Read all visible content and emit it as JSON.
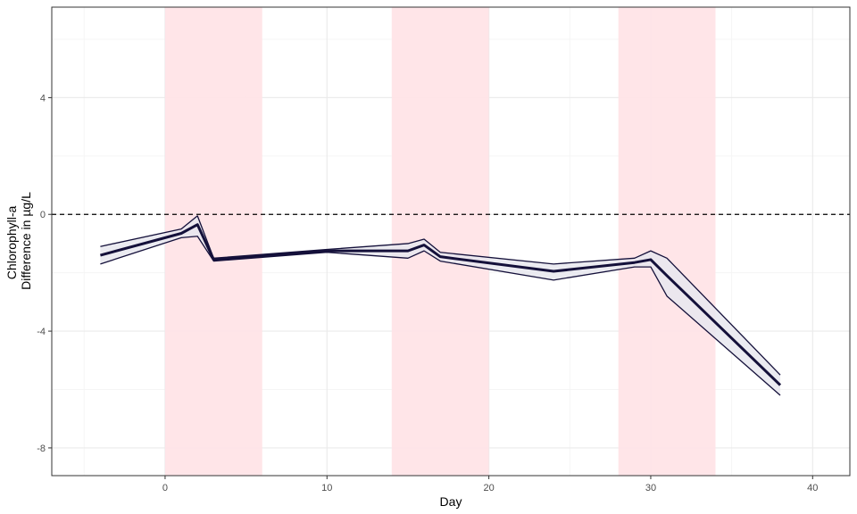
{
  "chart_data": {
    "type": "line",
    "title": "",
    "xlabel": "Day",
    "ylabel_lines": [
      "Chlorophyll-a",
      "Difference in µg/L"
    ],
    "xlim": [
      -7,
      42.3
    ],
    "ylim": [
      -8.95,
      7.1
    ],
    "x_ticks": [
      0,
      10,
      20,
      30,
      40
    ],
    "x_tick_labels": [
      "0",
      "10",
      "20",
      "30",
      "40"
    ],
    "y_ticks": [
      4,
      0,
      -4,
      -8
    ],
    "y_tick_labels": [
      "4",
      "0",
      "-4",
      "-8"
    ],
    "x_minor_ticks": [
      -5,
      5,
      15,
      25,
      35
    ],
    "y_minor_ticks": [
      6,
      2,
      -2,
      -6
    ],
    "grid": true,
    "reference_line": {
      "y": 0,
      "style": "dashed"
    },
    "shaded_periods": [
      {
        "x_start": 0,
        "x_end": 6
      },
      {
        "x_start": 14,
        "x_end": 20
      },
      {
        "x_start": 28,
        "x_end": 34
      }
    ],
    "series": [
      {
        "x": [
          -4,
          1,
          2,
          3,
          10,
          15,
          16,
          17,
          24,
          29,
          30,
          31,
          38
        ],
        "y": [
          -1.4,
          -0.65,
          -0.35,
          -1.55,
          -1.25,
          -1.25,
          -1.05,
          -1.45,
          -1.95,
          -1.65,
          -1.55,
          -2.1,
          -5.85
        ],
        "lower": [
          -1.7,
          -0.8,
          -0.75,
          -1.6,
          -1.3,
          -1.5,
          -1.25,
          -1.6,
          -2.25,
          -1.8,
          -1.8,
          -2.8,
          -6.2
        ],
        "upper": [
          -1.1,
          -0.5,
          -0.05,
          -1.5,
          -1.2,
          -1.0,
          -0.85,
          -1.3,
          -1.7,
          -1.5,
          -1.25,
          -1.5,
          -5.5
        ]
      }
    ],
    "colors": {
      "line": "#14103a",
      "ribbon_fill": "#e8e8ef",
      "ribbon_in_period": "#e8d6dc",
      "shaded_period": "#ffe3e6",
      "panel_border": "#333333",
      "grid_major": "#ebebeb",
      "grid_minor": "#f5f5f5",
      "reference_line": "#000000",
      "tick_label": "#4d4d4d"
    },
    "legend": "none"
  }
}
